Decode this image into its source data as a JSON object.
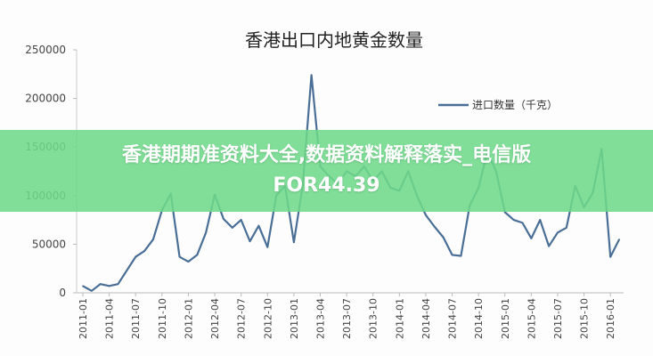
{
  "banner": {
    "line1": "香港期期准资料大全,数据资料解释落实_电信版",
    "line2": "FOR44.39"
  },
  "chart_data": {
    "type": "line",
    "title": "香港出口内地黄金数量",
    "xlabel": "",
    "ylabel": "",
    "ylim": [
      0,
      250000
    ],
    "yticks": [
      0,
      50000,
      100000,
      150000,
      200000,
      250000
    ],
    "xticks": [
      "2011-01",
      "2011-04",
      "2011-07",
      "2011-10",
      "2012-01",
      "2012-04",
      "2012-07",
      "2012-10",
      "2013-01",
      "2013-04",
      "2013-07",
      "2013-10",
      "2014-01",
      "2014-04",
      "2014-07",
      "2014-10",
      "2015-01",
      "2015-04",
      "2015-07",
      "2015-10",
      "2016-01"
    ],
    "grid": false,
    "legend": "top-right",
    "color": "#4a6f96",
    "x_start": "2011-01",
    "series": [
      {
        "name": "进口数量（千克）",
        "values": [
          7000,
          2000,
          9000,
          7000,
          9000,
          23000,
          37000,
          43000,
          55000,
          85000,
          102000,
          37000,
          32000,
          39000,
          62000,
          101000,
          76000,
          67000,
          75000,
          53000,
          69000,
          47000,
          100000,
          110000,
          52000,
          110000,
          224000,
          130000,
          120000,
          112000,
          125000,
          120000,
          130000,
          115000,
          125000,
          108000,
          105000,
          125000,
          100000,
          80000,
          68000,
          57000,
          39000,
          38000,
          90000,
          108000,
          145000,
          125000,
          83000,
          75000,
          72000,
          56000,
          75000,
          48000,
          62000,
          67000,
          110000,
          88000,
          103000,
          148000,
          37000,
          55000
        ]
      }
    ]
  }
}
